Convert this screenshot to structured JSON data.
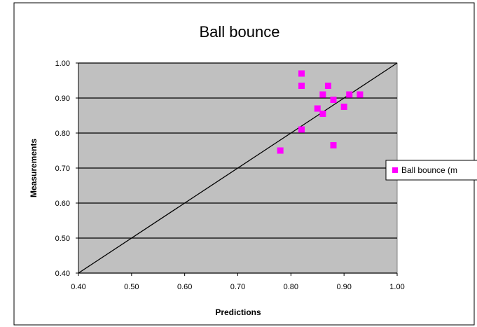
{
  "chart_data": {
    "type": "scatter",
    "title": "Ball bounce",
    "xlabel": "Predictions",
    "ylabel": "Measurements",
    "xlim": [
      0.4,
      1.0
    ],
    "ylim": [
      0.4,
      1.0
    ],
    "x_ticks": [
      "0.40",
      "0.50",
      "0.60",
      "0.70",
      "0.80",
      "0.90",
      "1.00"
    ],
    "y_ticks": [
      "0.40",
      "0.50",
      "0.60",
      "0.70",
      "0.80",
      "0.90",
      "1.00"
    ],
    "grid": "horizontal",
    "plot_background": "#c0c0c0",
    "legend_position": "right",
    "series": [
      {
        "name": "Ball bounce (m",
        "marker": "square",
        "color": "#ff00ff",
        "points": [
          {
            "x": 0.78,
            "y": 0.75
          },
          {
            "x": 0.82,
            "y": 0.81
          },
          {
            "x": 0.82,
            "y": 0.97
          },
          {
            "x": 0.82,
            "y": 0.935
          },
          {
            "x": 0.85,
            "y": 0.87
          },
          {
            "x": 0.86,
            "y": 0.91
          },
          {
            "x": 0.86,
            "y": 0.855
          },
          {
            "x": 0.87,
            "y": 0.935
          },
          {
            "x": 0.88,
            "y": 0.895
          },
          {
            "x": 0.88,
            "y": 0.765
          },
          {
            "x": 0.9,
            "y": 0.875
          },
          {
            "x": 0.91,
            "y": 0.91
          },
          {
            "x": 0.93,
            "y": 0.91
          }
        ]
      }
    ],
    "reference_line": {
      "from": [
        0.4,
        0.4
      ],
      "to": [
        1.0,
        1.0
      ],
      "color": "#000000"
    }
  }
}
